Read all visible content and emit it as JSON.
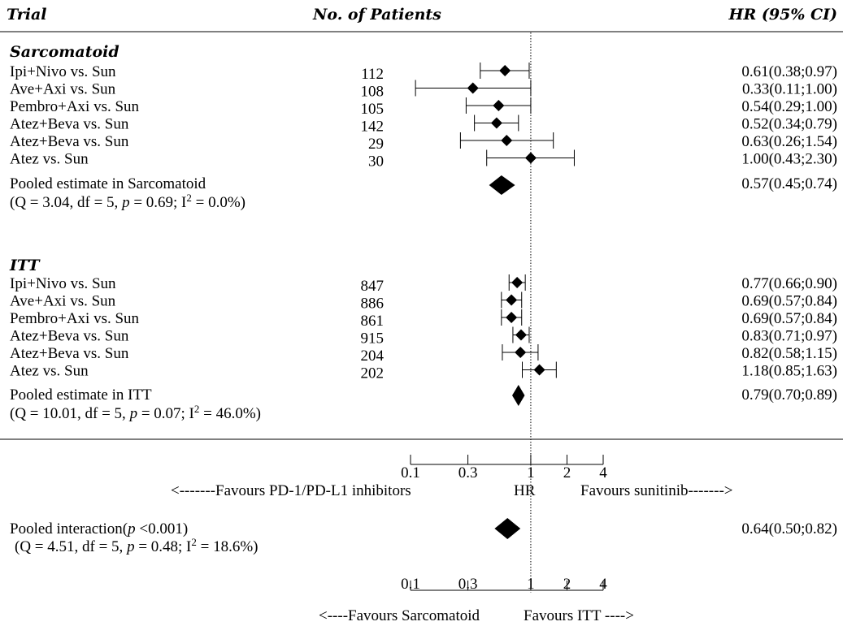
{
  "header": {
    "trial": "Trial",
    "patients": "No. of Patients",
    "hr": "HR (95% CI)"
  },
  "sections": [
    {
      "title": "Sarcomatoid",
      "rows": [
        {
          "trial": "Ipi+Nivo vs. Sun",
          "n": "112",
          "hr": 0.61,
          "lo": 0.38,
          "hi": 0.97,
          "label": "0.61(0.38;0.97)"
        },
        {
          "trial": "Ave+Axi vs. Sun",
          "n": "108",
          "hr": 0.33,
          "lo": 0.11,
          "hi": 1.0,
          "label": "0.33(0.11;1.00)"
        },
        {
          "trial": "Pembro+Axi vs. Sun",
          "n": "105",
          "hr": 0.54,
          "lo": 0.29,
          "hi": 1.0,
          "label": "0.54(0.29;1.00)"
        },
        {
          "trial": "Atez+Beva vs. Sun",
          "n": "142",
          "hr": 0.52,
          "lo": 0.34,
          "hi": 0.79,
          "label": "0.52(0.34;0.79)"
        },
        {
          "trial": "Atez+Beva vs. Sun",
          "n": "29",
          "hr": 0.63,
          "lo": 0.26,
          "hi": 1.54,
          "label": "0.63(0.26;1.54)"
        },
        {
          "trial": "Atez vs. Sun",
          "n": "30",
          "hr": 1.0,
          "lo": 0.43,
          "hi": 2.3,
          "label": "1.00(0.43;2.30)"
        }
      ],
      "pooled": {
        "line1": "Pooled estimate in Sarcomatoid",
        "q": "(Q = 3.04, df = 5, ",
        "p": "p",
        "mid": " = 0.69; I",
        "sup": "2",
        "end": " = 0.0%)",
        "hr": 0.57,
        "lo": 0.45,
        "hi": 0.74,
        "label": "0.57(0.45;0.74)"
      }
    },
    {
      "title": "ITT",
      "rows": [
        {
          "trial": "Ipi+Nivo vs. Sun",
          "n": "847",
          "hr": 0.77,
          "lo": 0.66,
          "hi": 0.9,
          "label": "0.77(0.66;0.90)"
        },
        {
          "trial": "Ave+Axi vs. Sun",
          "n": "886",
          "hr": 0.69,
          "lo": 0.57,
          "hi": 0.84,
          "label": "0.69(0.57;0.84)"
        },
        {
          "trial": "Pembro+Axi vs. Sun",
          "n": "861",
          "hr": 0.69,
          "lo": 0.57,
          "hi": 0.84,
          "label": "0.69(0.57;0.84)"
        },
        {
          "trial": "Atez+Beva vs. Sun",
          "n": "915",
          "hr": 0.83,
          "lo": 0.71,
          "hi": 0.97,
          "label": "0.83(0.71;0.97)"
        },
        {
          "trial": "Atez+Beva vs. Sun",
          "n": "204",
          "hr": 0.82,
          "lo": 0.58,
          "hi": 1.15,
          "label": "0.82(0.58;1.15)"
        },
        {
          "trial": "Atez vs. Sun",
          "n": "202",
          "hr": 1.18,
          "lo": 0.85,
          "hi": 1.63,
          "label": "1.18(0.85;1.63)"
        }
      ],
      "pooled": {
        "line1": "Pooled estimate in ITT",
        "q": "(Q = 10.01, df = 5, ",
        "p": "p",
        "mid": " = 0.07; I",
        "sup": "2",
        "end": " = 46.0%)",
        "hr": 0.79,
        "lo": 0.7,
        "hi": 0.89,
        "label": "0.79(0.70;0.89)"
      }
    }
  ],
  "axis1": {
    "ticks": [
      0.1,
      0.3,
      1,
      2,
      4
    ],
    "tick_labels": [
      "0.1",
      "0.3",
      "1",
      "2",
      "4"
    ],
    "left_label": "<-------Favours PD-1/PD-L1 inhibitors",
    "center_label": "HR",
    "right_label": "Favours sunitinib------->"
  },
  "interaction": {
    "line1a": "Pooled interaction(",
    "p": "p",
    "line1b": " <0.001)",
    "q": "(Q = 4.51, df = 5, ",
    "p2": "p",
    "mid": " = 0.48; I",
    "sup": "2",
    "end": " = 18.6%)",
    "hr": 0.64,
    "lo": 0.5,
    "hi": 0.82,
    "label": "0.64(0.50;0.82)"
  },
  "axis2": {
    "ticks": [
      0.1,
      0.3,
      1,
      2,
      4
    ],
    "tick_labels": [
      "0.1",
      "0.3",
      "1",
      "2",
      "4"
    ],
    "left_label": "<----Favours Sarcomatoid",
    "right_label": "Favours ITT    ---->"
  },
  "chart_data": {
    "type": "forest",
    "xscale": "log",
    "xlim": [
      0.1,
      4
    ],
    "reference_line": 1,
    "series": [
      {
        "name": "Sarcomatoid",
        "rows": [
          {
            "label": "Ipi+Nivo vs. Sun",
            "n": 112,
            "hr": 0.61,
            "ci": [
              0.38,
              0.97
            ]
          },
          {
            "label": "Ave+Axi vs. Sun",
            "n": 108,
            "hr": 0.33,
            "ci": [
              0.11,
              1.0
            ]
          },
          {
            "label": "Pembro+Axi vs. Sun",
            "n": 105,
            "hr": 0.54,
            "ci": [
              0.29,
              1.0
            ]
          },
          {
            "label": "Atez+Beva vs. Sun",
            "n": 142,
            "hr": 0.52,
            "ci": [
              0.34,
              0.79
            ]
          },
          {
            "label": "Atez+Beva vs. Sun",
            "n": 29,
            "hr": 0.63,
            "ci": [
              0.26,
              1.54
            ]
          },
          {
            "label": "Atez vs. Sun",
            "n": 30,
            "hr": 1.0,
            "ci": [
              0.43,
              2.3
            ]
          }
        ],
        "pooled": {
          "hr": 0.57,
          "ci": [
            0.45,
            0.74
          ],
          "Q": 3.04,
          "df": 5,
          "p": 0.69,
          "I2": "0.0%"
        }
      },
      {
        "name": "ITT",
        "rows": [
          {
            "label": "Ipi+Nivo vs. Sun",
            "n": 847,
            "hr": 0.77,
            "ci": [
              0.66,
              0.9
            ]
          },
          {
            "label": "Ave+Axi vs. Sun",
            "n": 886,
            "hr": 0.69,
            "ci": [
              0.57,
              0.84
            ]
          },
          {
            "label": "Pembro+Axi vs. Sun",
            "n": 861,
            "hr": 0.69,
            "ci": [
              0.57,
              0.84
            ]
          },
          {
            "label": "Atez+Beva vs. Sun",
            "n": 915,
            "hr": 0.83,
            "ci": [
              0.71,
              0.97
            ]
          },
          {
            "label": "Atez+Beva vs. Sun",
            "n": 204,
            "hr": 0.82,
            "ci": [
              0.58,
              1.15
            ]
          },
          {
            "label": "Atez vs. Sun",
            "n": 202,
            "hr": 1.18,
            "ci": [
              0.85,
              1.63
            ]
          }
        ],
        "pooled": {
          "hr": 0.79,
          "ci": [
            0.7,
            0.89
          ],
          "Q": 10.01,
          "df": 5,
          "p": 0.07,
          "I2": "46.0%"
        }
      }
    ],
    "interaction": {
      "hr": 0.64,
      "ci": [
        0.5,
        0.82
      ],
      "p": "<0.001",
      "Q": 4.51,
      "df": 5,
      "p_het": 0.48,
      "I2": "18.6%"
    }
  }
}
